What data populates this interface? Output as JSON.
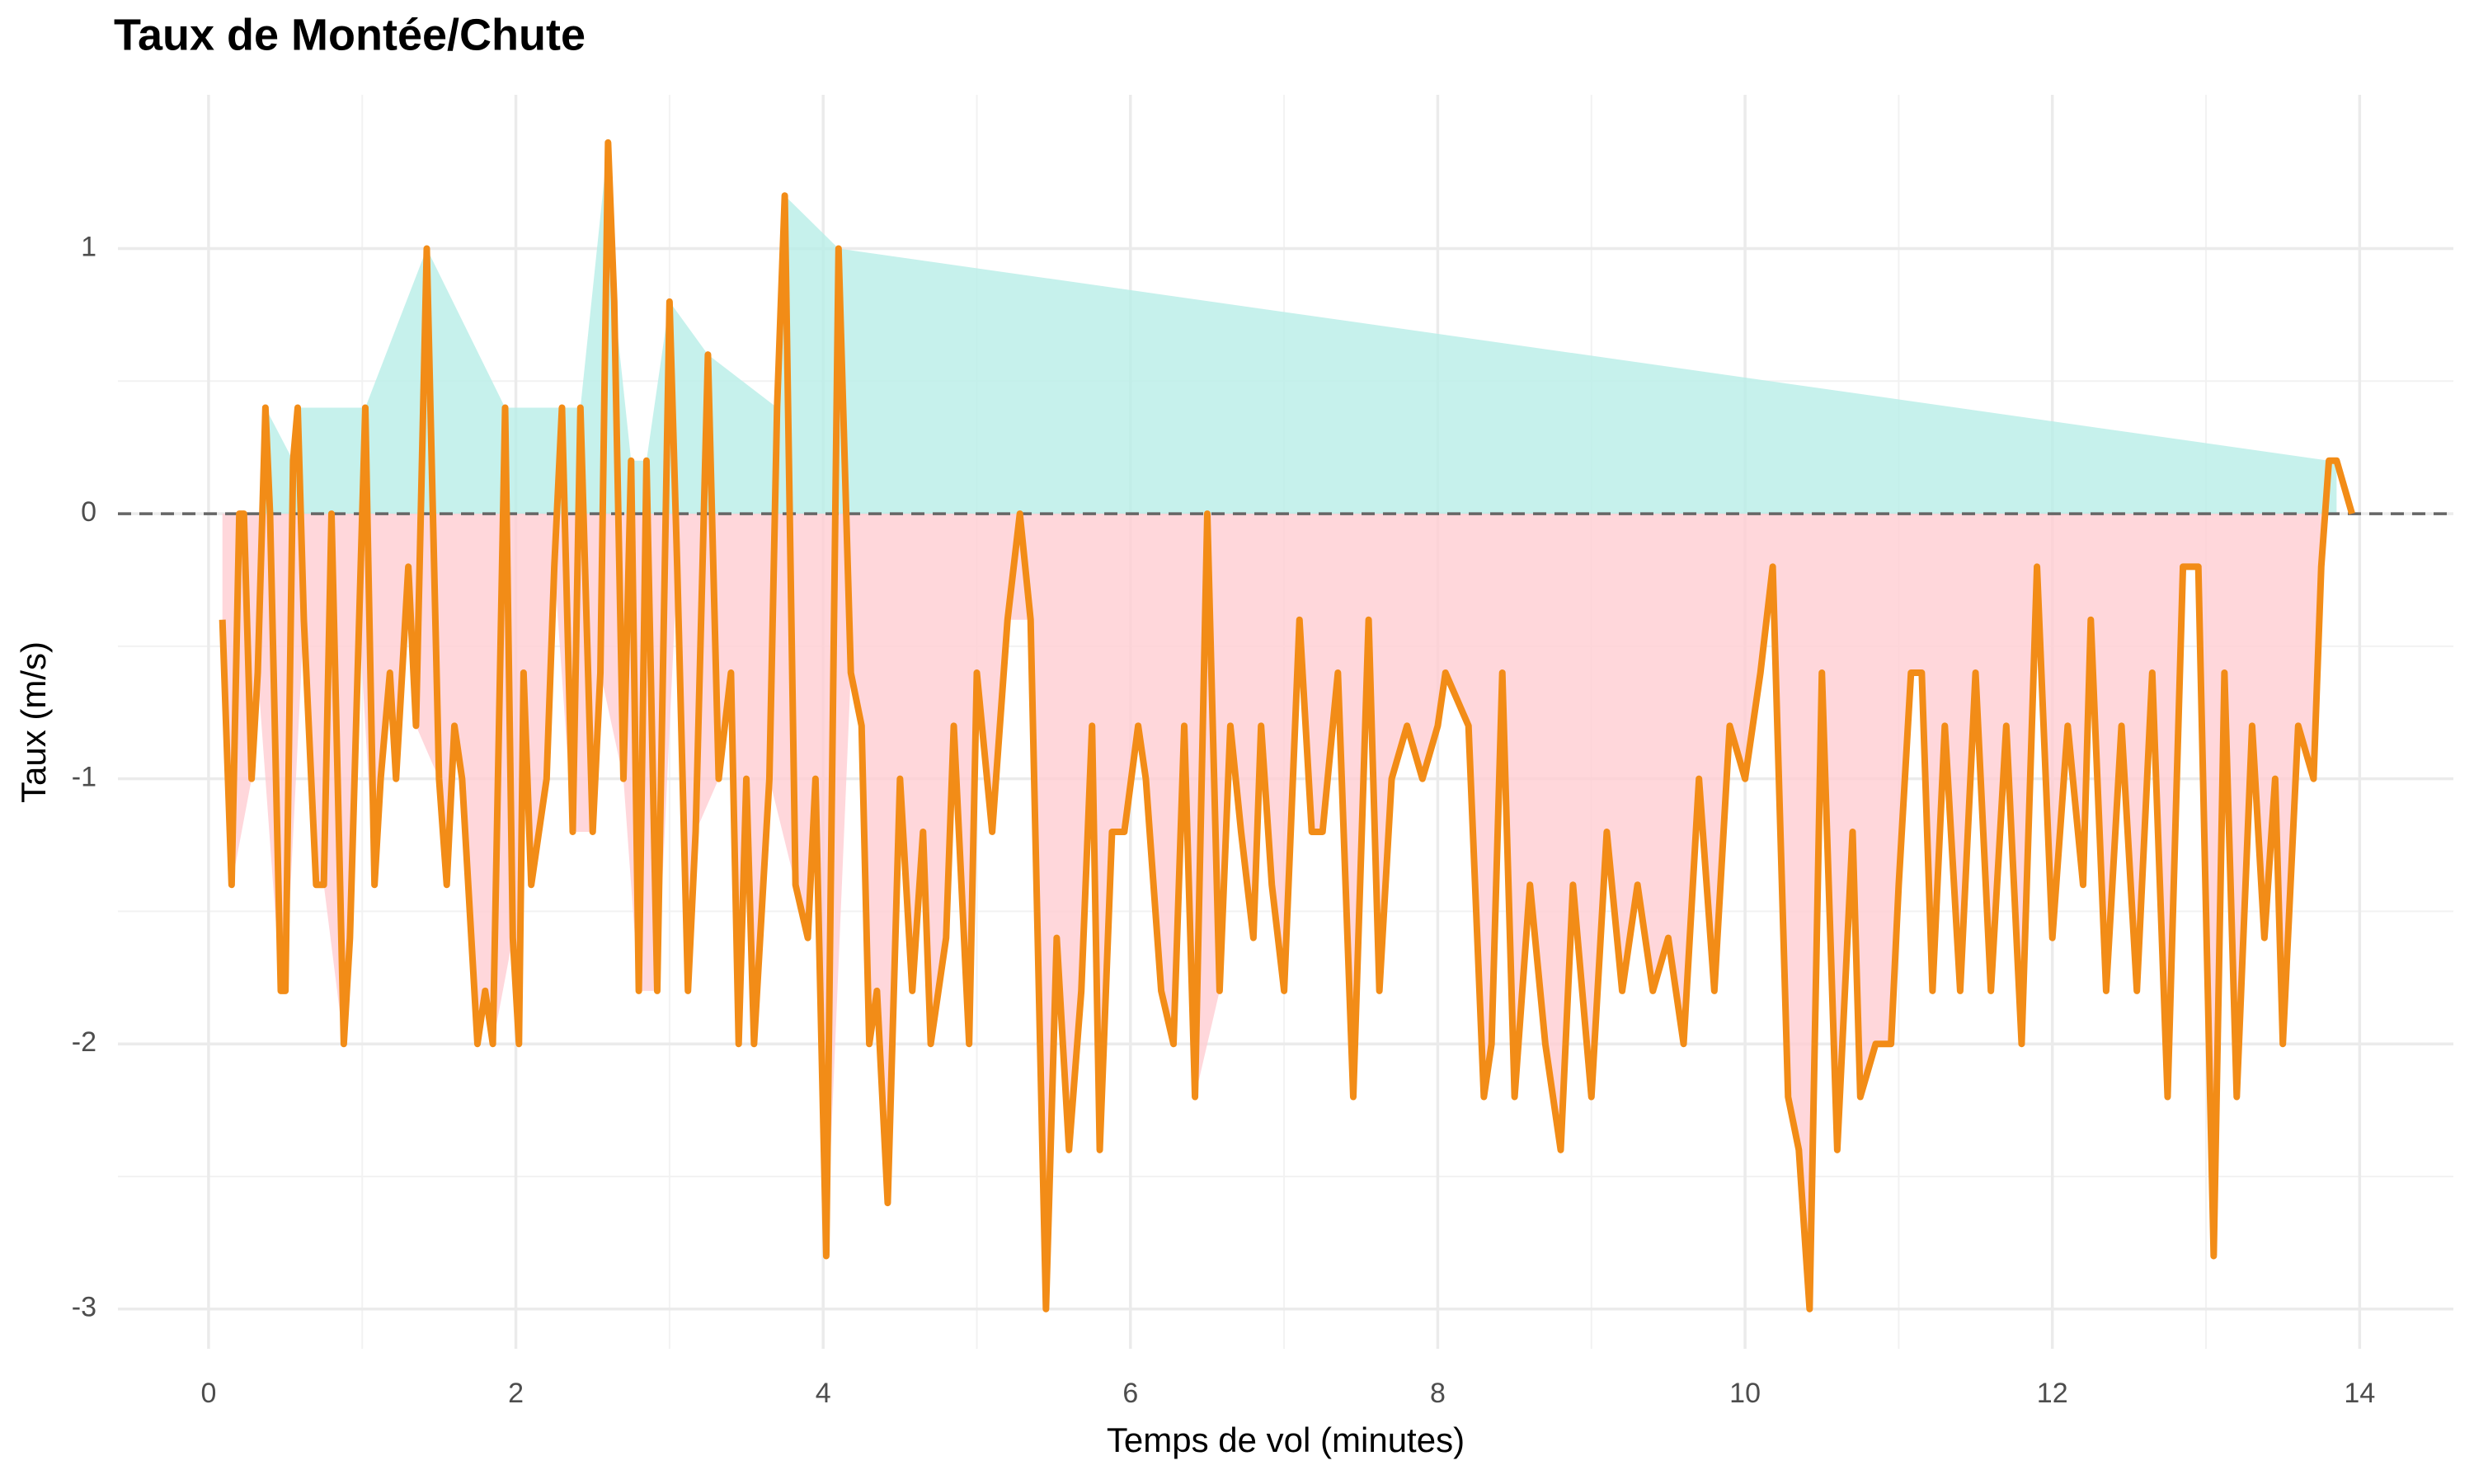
{
  "chart_data": {
    "type": "line",
    "title": "Taux de Montée/Chute",
    "x_label": "Temps de vol (minutes)",
    "y_label": "Taux (m/s)",
    "x": [
      0.09,
      0.15,
      0.2,
      0.23,
      0.28,
      0.32,
      0.37,
      0.4,
      0.47,
      0.5,
      0.55,
      0.58,
      0.62,
      0.7,
      0.75,
      0.8,
      0.88,
      0.92,
      0.98,
      1.02,
      1.08,
      1.12,
      1.18,
      1.22,
      1.3,
      1.35,
      1.42,
      1.5,
      1.55,
      1.6,
      1.65,
      1.75,
      1.8,
      1.85,
      1.93,
      1.98,
      2.02,
      2.05,
      2.1,
      2.2,
      2.25,
      2.3,
      2.37,
      2.42,
      2.5,
      2.55,
      2.6,
      2.64,
      2.7,
      2.75,
      2.8,
      2.85,
      2.92,
      3.0,
      3.05,
      3.12,
      3.17,
      3.25,
      3.32,
      3.4,
      3.45,
      3.5,
      3.55,
      3.65,
      3.7,
      3.75,
      3.82,
      3.9,
      3.95,
      4.02,
      4.1,
      4.18,
      4.25,
      4.3,
      4.35,
      4.42,
      4.5,
      4.58,
      4.65,
      4.7,
      4.8,
      4.85,
      4.95,
      5.0,
      5.1,
      5.2,
      5.28,
      5.35,
      5.45,
      5.52,
      5.6,
      5.68,
      5.75,
      5.8,
      5.88,
      5.96,
      6.05,
      6.1,
      6.2,
      6.28,
      6.35,
      6.42,
      6.5,
      6.58,
      6.65,
      6.72,
      6.8,
      6.85,
      6.92,
      7.0,
      7.1,
      7.18,
      7.25,
      7.35,
      7.45,
      7.55,
      7.62,
      7.7,
      7.8,
      7.9,
      8.0,
      8.05,
      8.2,
      8.3,
      8.35,
      8.42,
      8.5,
      8.6,
      8.7,
      8.8,
      8.88,
      9.0,
      9.1,
      9.2,
      9.3,
      9.4,
      9.5,
      9.6,
      9.7,
      9.8,
      9.9,
      10.0,
      10.1,
      10.18,
      10.28,
      10.35,
      10.42,
      10.5,
      10.6,
      10.7,
      10.75,
      10.85,
      10.95,
      11.0,
      11.08,
      11.15,
      11.22,
      11.3,
      11.4,
      11.5,
      11.6,
      11.7,
      11.8,
      11.9,
      12.0,
      12.1,
      12.2,
      12.25,
      12.35,
      12.45,
      12.55,
      12.65,
      12.75,
      12.85,
      12.95,
      13.05,
      13.12,
      13.2,
      13.3,
      13.38,
      13.45,
      13.5,
      13.6,
      13.7,
      13.75,
      13.8,
      13.85,
      13.95
    ],
    "values": [
      -0.4,
      -1.4,
      0,
      0,
      -1,
      -0.6,
      0.4,
      0,
      -1.8,
      -1.8,
      0.2,
      0.4,
      -0.4,
      -1.4,
      -1.4,
      0,
      -2,
      -1.6,
      -0.4,
      0.4,
      -1.4,
      -1,
      -0.6,
      -1,
      -0.2,
      -0.8,
      1,
      -1,
      -1.4,
      -0.8,
      -1,
      -2,
      -1.8,
      -2,
      0.4,
      -1.6,
      -2,
      -0.6,
      -1.4,
      -1,
      -0.2,
      0.4,
      -1.2,
      0.4,
      -1.2,
      -0.6,
      1.4,
      0.8,
      -1,
      0.2,
      -1.8,
      0.2,
      -1.8,
      0.8,
      -0.2,
      -1.8,
      -1.2,
      0.6,
      -1,
      -0.6,
      -2,
      -1,
      -2,
      -1,
      0.4,
      1.2,
      -1.4,
      -1.6,
      -1,
      -2.8,
      1,
      -0.6,
      -0.8,
      -2,
      -1.8,
      -2.6,
      -1,
      -1.8,
      -1.2,
      -2,
      -1.6,
      -0.8,
      -2,
      -0.6,
      -1.2,
      -0.4,
      0,
      -0.4,
      -3,
      -1.6,
      -2.4,
      -1.8,
      -0.8,
      -2.4,
      -1.2,
      -1.2,
      -0.8,
      -1,
      -1.8,
      -2,
      -0.8,
      -2.2,
      0,
      -1.8,
      -0.8,
      -1.2,
      -1.6,
      -0.8,
      -1.4,
      -1.8,
      -0.4,
      -1.2,
      -1.2,
      -0.6,
      -2.2,
      -0.4,
      -1.8,
      -1,
      -0.8,
      -1,
      -0.8,
      -0.6,
      -0.8,
      -2.2,
      -2,
      -0.6,
      -2.2,
      -1.4,
      -2,
      -2.4,
      -1.4,
      -2.2,
      -1.2,
      -1.8,
      -1.4,
      -1.8,
      -1.6,
      -2,
      -1,
      -1.8,
      -0.8,
      -1,
      -0.6,
      -0.2,
      -2.2,
      -2.4,
      -3,
      -0.6,
      -2.4,
      -1.2,
      -2.2,
      -2,
      -2,
      -1.4,
      -0.6,
      -0.6,
      -1.8,
      -0.8,
      -1.8,
      -0.6,
      -1.8,
      -0.8,
      -2,
      -0.2,
      -1.6,
      -0.8,
      -1.4,
      -0.4,
      -1.8,
      -0.8,
      -1.8,
      -0.6,
      -2.2,
      -0.2,
      -0.2,
      -2.8,
      -0.6,
      -2.2,
      -0.8,
      -1.6,
      -1,
      -2,
      -0.8,
      -1,
      -0.2,
      0.2,
      0.2,
      0
    ],
    "color": "#f28c17",
    "positive_color": "#b8ede7",
    "negative_color": "#ffcdd2",
    "hline": 0,
    "xlim": [
      -0.59,
      14.61
    ],
    "ylim": [
      -3.15,
      1.58
    ],
    "xticks": [
      0,
      2,
      4,
      6,
      8,
      10,
      12,
      14
    ],
    "yticks": [
      -3,
      -2,
      -1,
      0,
      1
    ],
    "grid": true
  }
}
